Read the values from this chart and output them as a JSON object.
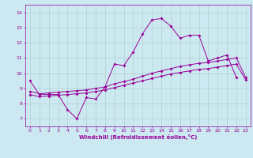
{
  "xlabel": "Windchill (Refroidissement éolien,°C)",
  "bg_color": "#cce8f0",
  "line_color": "#990099",
  "xlim": [
    -0.5,
    23.5
  ],
  "ylim": [
    6.5,
    14.5
  ],
  "xticks": [
    0,
    1,
    2,
    3,
    4,
    5,
    6,
    7,
    8,
    9,
    10,
    11,
    12,
    13,
    14,
    15,
    16,
    17,
    18,
    19,
    20,
    21,
    22,
    23
  ],
  "yticks": [
    7,
    8,
    9,
    10,
    11,
    12,
    13,
    14
  ],
  "series1_x": [
    0,
    1,
    2,
    3,
    4,
    5,
    6,
    7,
    8,
    9,
    10,
    11,
    12,
    13,
    14,
    15,
    16,
    17,
    18,
    19,
    20,
    21,
    22
  ],
  "series1_y": [
    9.5,
    8.6,
    8.6,
    8.6,
    7.6,
    7.0,
    8.4,
    8.3,
    9.1,
    10.6,
    10.5,
    11.4,
    12.6,
    13.5,
    13.6,
    13.1,
    12.3,
    12.5,
    12.5,
    10.8,
    11.0,
    11.2,
    9.7
  ],
  "series2_x": [
    0,
    1,
    2,
    3,
    4,
    5,
    6,
    7,
    8,
    9,
    10,
    11,
    12,
    13,
    14,
    15,
    16,
    17,
    18,
    19,
    20,
    21,
    22,
    23
  ],
  "series2_y": [
    8.8,
    8.65,
    8.7,
    8.75,
    8.8,
    8.85,
    8.9,
    9.0,
    9.1,
    9.3,
    9.45,
    9.6,
    9.8,
    10.0,
    10.15,
    10.3,
    10.45,
    10.55,
    10.65,
    10.7,
    10.8,
    10.9,
    11.0,
    9.7
  ],
  "series3_x": [
    0,
    1,
    2,
    3,
    4,
    5,
    6,
    7,
    8,
    9,
    10,
    11,
    12,
    13,
    14,
    15,
    16,
    17,
    18,
    19,
    20,
    21,
    22,
    23
  ],
  "series3_y": [
    8.6,
    8.45,
    8.5,
    8.55,
    8.6,
    8.65,
    8.7,
    8.8,
    8.9,
    9.05,
    9.2,
    9.35,
    9.5,
    9.65,
    9.8,
    9.95,
    10.05,
    10.15,
    10.25,
    10.3,
    10.4,
    10.5,
    10.6,
    9.55
  ]
}
